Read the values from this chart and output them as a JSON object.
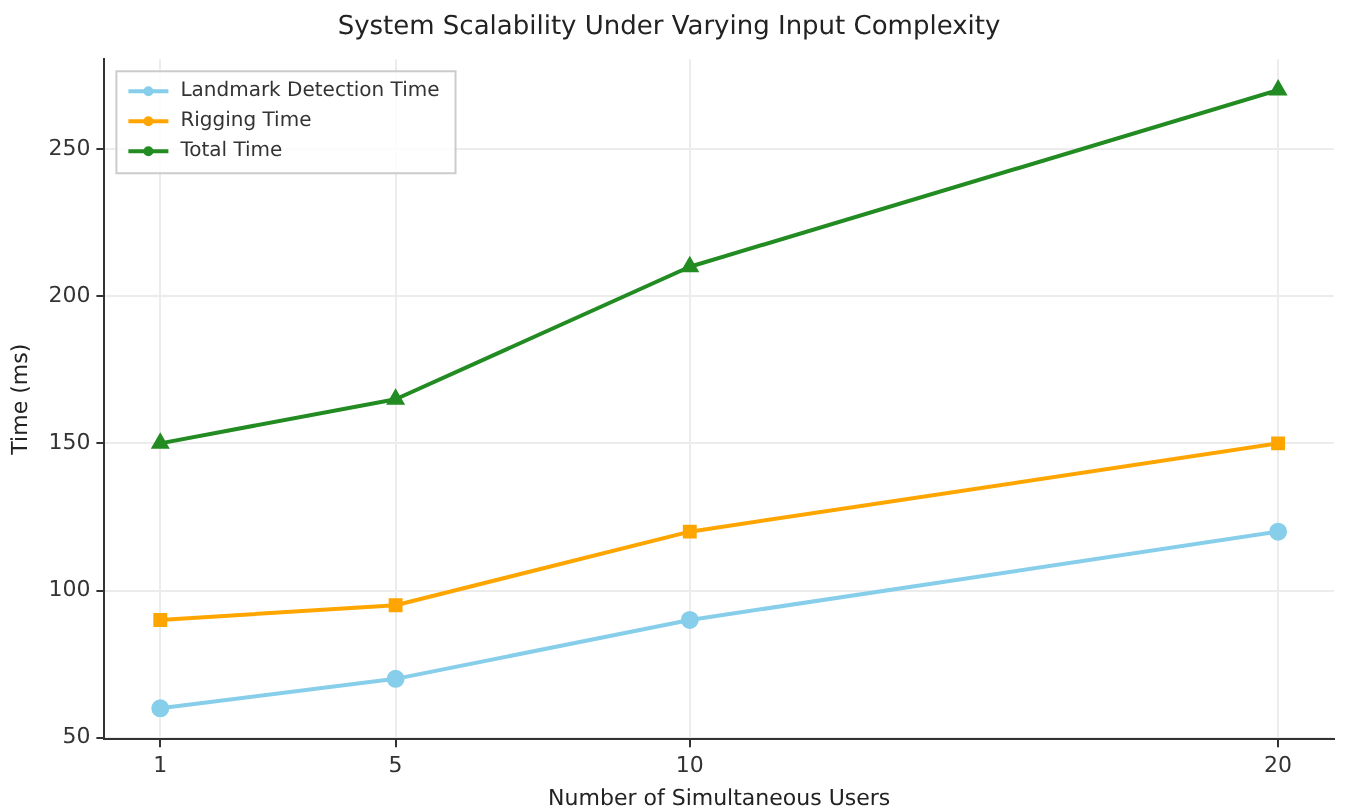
{
  "chart_data": {
    "type": "line",
    "title": "System Scalability Under Varying Input Complexity",
    "xlabel": "Number of Simultaneous Users",
    "ylabel": "Time (ms)",
    "x": [
      1,
      5,
      10,
      20
    ],
    "xlim": [
      0.05,
      20.95
    ],
    "xticks": [
      1,
      5,
      10,
      20
    ],
    "ylim": [
      49.5,
      280.5
    ],
    "yticks": [
      50,
      100,
      150,
      200,
      250
    ],
    "grid": true,
    "legend": "top left",
    "line_style": "solid",
    "series": [
      {
        "name": "Landmark Detection Time",
        "color": "#87ceeb",
        "marker": "circle",
        "values": [
          60,
          70,
          90,
          120
        ]
      },
      {
        "name": "Rigging Time",
        "color": "#ffa500",
        "marker": "square",
        "values": [
          90,
          95,
          120,
          150
        ]
      },
      {
        "name": "Total Time",
        "color": "#228b22",
        "marker": "triangle",
        "values": [
          150,
          165,
          210,
          270
        ]
      }
    ]
  }
}
